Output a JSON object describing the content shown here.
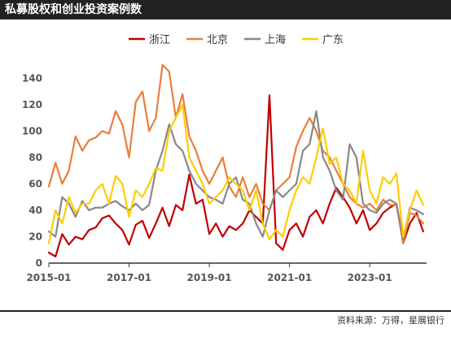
{
  "header": {
    "title": "私募股权和创业投资案例数"
  },
  "footer": {
    "source": "资料来源：万得，星展银行"
  },
  "colors": {
    "header_bg": "#222222",
    "axis": "#333333"
  },
  "chart_data": {
    "type": "line",
    "title": "私募股权和创业投资案例数",
    "xlabel": "",
    "ylabel": "",
    "ylim": [
      0,
      150
    ],
    "xlim": [
      "2015-01",
      "2024-06"
    ],
    "y_ticks": [
      0,
      20,
      40,
      60,
      80,
      100,
      120,
      140
    ],
    "x_ticks": [
      "2015-01",
      "2017-01",
      "2019-01",
      "2021-01",
      "2023-01"
    ],
    "grid": false,
    "legend": "top",
    "series": [
      {
        "name": "浙江",
        "color": "#c00000",
        "points": [
          [
            "2015-01",
            8
          ],
          [
            "2015-03",
            5
          ],
          [
            "2015-05",
            22
          ],
          [
            "2015-07",
            14
          ],
          [
            "2015-09",
            20
          ],
          [
            "2015-11",
            18
          ],
          [
            "2016-01",
            25
          ],
          [
            "2016-03",
            27
          ],
          [
            "2016-05",
            34
          ],
          [
            "2016-07",
            36
          ],
          [
            "2016-09",
            30
          ],
          [
            "2016-11",
            25
          ],
          [
            "2017-01",
            14
          ],
          [
            "2017-03",
            29
          ],
          [
            "2017-05",
            32
          ],
          [
            "2017-07",
            19
          ],
          [
            "2017-09",
            30
          ],
          [
            "2017-11",
            42
          ],
          [
            "2018-01",
            28
          ],
          [
            "2018-03",
            44
          ],
          [
            "2018-05",
            40
          ],
          [
            "2018-07",
            67
          ],
          [
            "2018-09",
            45
          ],
          [
            "2018-11",
            48
          ],
          [
            "2019-01",
            22
          ],
          [
            "2019-03",
            30
          ],
          [
            "2019-05",
            20
          ],
          [
            "2019-07",
            28
          ],
          [
            "2019-09",
            25
          ],
          [
            "2019-11",
            30
          ],
          [
            "2020-01",
            40
          ],
          [
            "2020-03",
            35
          ],
          [
            "2020-05",
            30
          ],
          [
            "2020-07",
            127
          ],
          [
            "2020-09",
            15
          ],
          [
            "2020-11",
            10
          ],
          [
            "2021-01",
            25
          ],
          [
            "2021-03",
            30
          ],
          [
            "2021-05",
            20
          ],
          [
            "2021-07",
            35
          ],
          [
            "2021-09",
            40
          ],
          [
            "2021-11",
            30
          ],
          [
            "2022-01",
            45
          ],
          [
            "2022-03",
            57
          ],
          [
            "2022-05",
            50
          ],
          [
            "2022-07",
            42
          ],
          [
            "2022-09",
            30
          ],
          [
            "2022-11",
            40
          ],
          [
            "2023-01",
            25
          ],
          [
            "2023-03",
            30
          ],
          [
            "2023-05",
            38
          ],
          [
            "2023-07",
            42
          ],
          [
            "2023-09",
            45
          ],
          [
            "2023-11",
            15
          ],
          [
            "2024-01",
            30
          ],
          [
            "2024-03",
            38
          ],
          [
            "2024-05",
            24
          ]
        ]
      },
      {
        "name": "北京",
        "color": "#e87e3c",
        "points": [
          [
            "2015-01",
            58
          ],
          [
            "2015-03",
            76
          ],
          [
            "2015-05",
            60
          ],
          [
            "2015-07",
            70
          ],
          [
            "2015-09",
            96
          ],
          [
            "2015-11",
            85
          ],
          [
            "2016-01",
            93
          ],
          [
            "2016-03",
            95
          ],
          [
            "2016-05",
            100
          ],
          [
            "2016-07",
            98
          ],
          [
            "2016-09",
            115
          ],
          [
            "2016-11",
            105
          ],
          [
            "2017-01",
            80
          ],
          [
            "2017-03",
            122
          ],
          [
            "2017-05",
            130
          ],
          [
            "2017-07",
            100
          ],
          [
            "2017-09",
            110
          ],
          [
            "2017-11",
            150
          ],
          [
            "2018-01",
            145
          ],
          [
            "2018-03",
            110
          ],
          [
            "2018-05",
            128
          ],
          [
            "2018-07",
            96
          ],
          [
            "2018-09",
            85
          ],
          [
            "2018-11",
            70
          ],
          [
            "2019-01",
            60
          ],
          [
            "2019-03",
            70
          ],
          [
            "2019-05",
            80
          ],
          [
            "2019-07",
            58
          ],
          [
            "2019-09",
            50
          ],
          [
            "2019-11",
            65
          ],
          [
            "2020-01",
            50
          ],
          [
            "2020-03",
            60
          ],
          [
            "2020-05",
            45
          ],
          [
            "2020-07",
            40
          ],
          [
            "2020-09",
            55
          ],
          [
            "2020-11",
            60
          ],
          [
            "2021-01",
            65
          ],
          [
            "2021-03",
            88
          ],
          [
            "2021-05",
            100
          ],
          [
            "2021-07",
            110
          ],
          [
            "2021-09",
            100
          ],
          [
            "2021-11",
            85
          ],
          [
            "2022-01",
            80
          ],
          [
            "2022-03",
            70
          ],
          [
            "2022-05",
            60
          ],
          [
            "2022-07",
            50
          ],
          [
            "2022-09",
            45
          ],
          [
            "2022-11",
            42
          ],
          [
            "2023-01",
            45
          ],
          [
            "2023-03",
            40
          ],
          [
            "2023-05",
            48
          ],
          [
            "2023-07",
            44
          ],
          [
            "2023-09",
            44
          ],
          [
            "2023-11",
            15
          ],
          [
            "2024-01",
            38
          ],
          [
            "2024-03",
            36
          ],
          [
            "2024-05",
            30
          ]
        ]
      },
      {
        "name": "上海",
        "color": "#888888",
        "points": [
          [
            "2015-01",
            24
          ],
          [
            "2015-03",
            20
          ],
          [
            "2015-05",
            50
          ],
          [
            "2015-07",
            45
          ],
          [
            "2015-09",
            35
          ],
          [
            "2015-11",
            47
          ],
          [
            "2016-01",
            40
          ],
          [
            "2016-03",
            42
          ],
          [
            "2016-05",
            42
          ],
          [
            "2016-07",
            45
          ],
          [
            "2016-09",
            47
          ],
          [
            "2016-11",
            43
          ],
          [
            "2017-01",
            40
          ],
          [
            "2017-03",
            45
          ],
          [
            "2017-05",
            40
          ],
          [
            "2017-07",
            44
          ],
          [
            "2017-09",
            70
          ],
          [
            "2017-11",
            85
          ],
          [
            "2018-01",
            105
          ],
          [
            "2018-03",
            90
          ],
          [
            "2018-05",
            85
          ],
          [
            "2018-07",
            70
          ],
          [
            "2018-09",
            60
          ],
          [
            "2018-11",
            55
          ],
          [
            "2019-01",
            50
          ],
          [
            "2019-03",
            48
          ],
          [
            "2019-05",
            45
          ],
          [
            "2019-07",
            60
          ],
          [
            "2019-09",
            65
          ],
          [
            "2019-11",
            48
          ],
          [
            "2020-01",
            45
          ],
          [
            "2020-03",
            30
          ],
          [
            "2020-05",
            20
          ],
          [
            "2020-07",
            40
          ],
          [
            "2020-09",
            55
          ],
          [
            "2020-11",
            50
          ],
          [
            "2021-01",
            55
          ],
          [
            "2021-03",
            60
          ],
          [
            "2021-05",
            85
          ],
          [
            "2021-07",
            90
          ],
          [
            "2021-09",
            115
          ],
          [
            "2021-11",
            80
          ],
          [
            "2022-01",
            70
          ],
          [
            "2022-03",
            55
          ],
          [
            "2022-05",
            48
          ],
          [
            "2022-07",
            90
          ],
          [
            "2022-09",
            80
          ],
          [
            "2022-11",
            45
          ],
          [
            "2023-01",
            40
          ],
          [
            "2023-03",
            38
          ],
          [
            "2023-05",
            45
          ],
          [
            "2023-07",
            48
          ],
          [
            "2023-09",
            45
          ],
          [
            "2023-11",
            18
          ],
          [
            "2024-01",
            42
          ],
          [
            "2024-03",
            40
          ],
          [
            "2024-05",
            37
          ]
        ]
      },
      {
        "name": "广东",
        "color": "#ffcc00",
        "points": [
          [
            "2015-01",
            15
          ],
          [
            "2015-03",
            40
          ],
          [
            "2015-05",
            30
          ],
          [
            "2015-07",
            50
          ],
          [
            "2015-09",
            38
          ],
          [
            "2015-11",
            45
          ],
          [
            "2016-01",
            45
          ],
          [
            "2016-03",
            55
          ],
          [
            "2016-05",
            60
          ],
          [
            "2016-07",
            45
          ],
          [
            "2016-09",
            66
          ],
          [
            "2016-11",
            60
          ],
          [
            "2017-01",
            35
          ],
          [
            "2017-03",
            55
          ],
          [
            "2017-05",
            50
          ],
          [
            "2017-07",
            60
          ],
          [
            "2017-09",
            72
          ],
          [
            "2017-11",
            70
          ],
          [
            "2018-01",
            100
          ],
          [
            "2018-03",
            110
          ],
          [
            "2018-05",
            120
          ],
          [
            "2018-07",
            80
          ],
          [
            "2018-09",
            70
          ],
          [
            "2018-11",
            60
          ],
          [
            "2019-01",
            45
          ],
          [
            "2019-03",
            50
          ],
          [
            "2019-05",
            55
          ],
          [
            "2019-07",
            65
          ],
          [
            "2019-09",
            60
          ],
          [
            "2019-11",
            55
          ],
          [
            "2020-01",
            40
          ],
          [
            "2020-03",
            55
          ],
          [
            "2020-05",
            30
          ],
          [
            "2020-07",
            18
          ],
          [
            "2020-09",
            25
          ],
          [
            "2020-11",
            20
          ],
          [
            "2021-01",
            40
          ],
          [
            "2021-03",
            55
          ],
          [
            "2021-05",
            65
          ],
          [
            "2021-07",
            60
          ],
          [
            "2021-09",
            80
          ],
          [
            "2021-11",
            102
          ],
          [
            "2022-01",
            75
          ],
          [
            "2022-03",
            80
          ],
          [
            "2022-05",
            60
          ],
          [
            "2022-07",
            55
          ],
          [
            "2022-09",
            45
          ],
          [
            "2022-11",
            85
          ],
          [
            "2023-01",
            55
          ],
          [
            "2023-03",
            45
          ],
          [
            "2023-05",
            65
          ],
          [
            "2023-07",
            60
          ],
          [
            "2023-09",
            68
          ],
          [
            "2023-11",
            20
          ],
          [
            "2024-01",
            40
          ],
          [
            "2024-03",
            55
          ],
          [
            "2024-05",
            44
          ]
        ]
      }
    ]
  }
}
